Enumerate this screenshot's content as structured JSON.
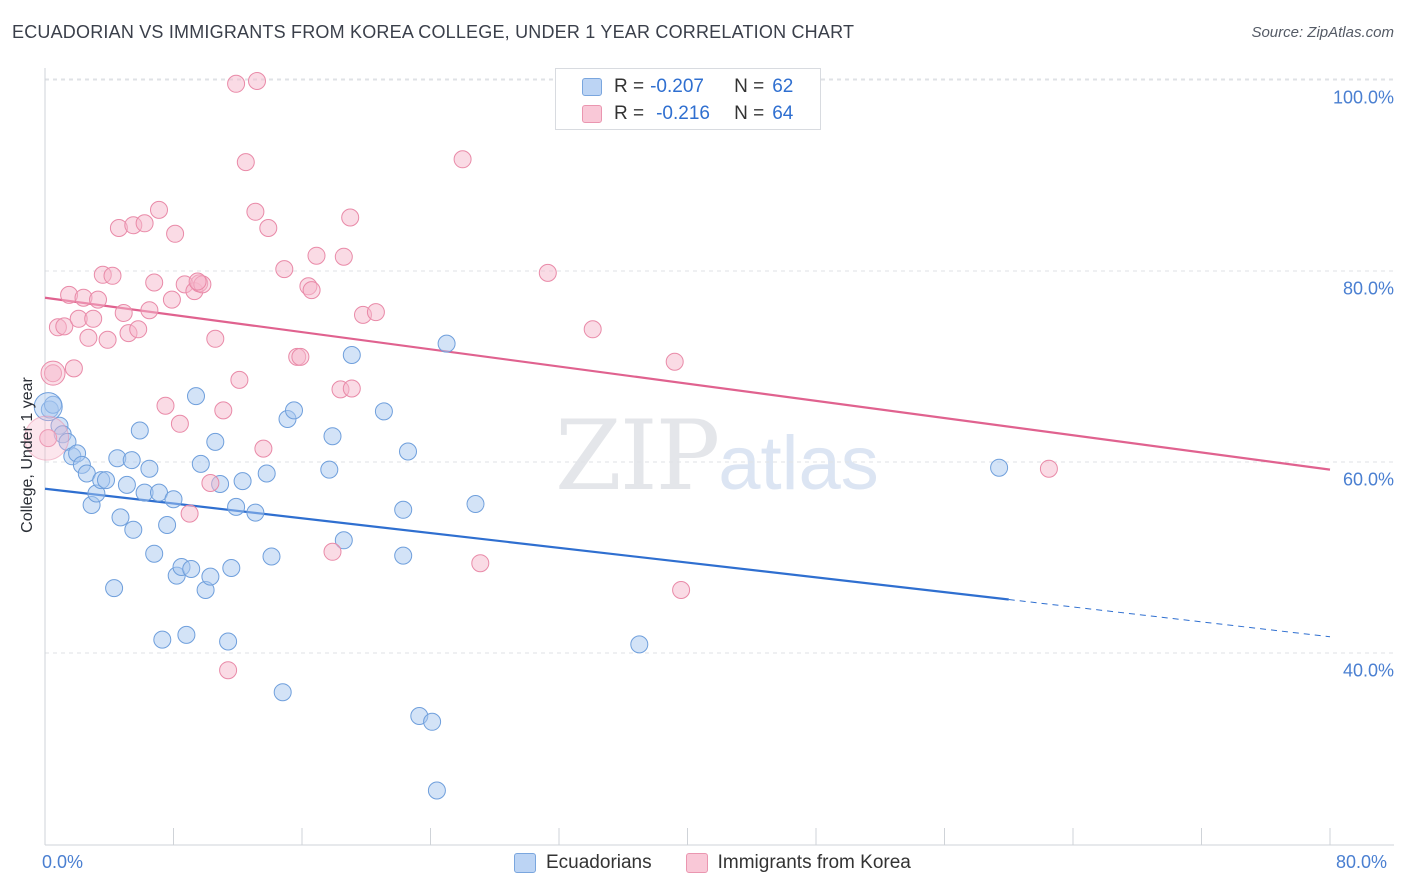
{
  "header": {
    "title": "ECUADORIAN VS IMMIGRANTS FROM KOREA COLLEGE, UNDER 1 YEAR CORRELATION CHART",
    "source": "Source: ZipAtlas.com"
  },
  "watermark": {
    "part1": "ZIP",
    "part2": "atlas"
  },
  "legend": {
    "rows": [
      {
        "r_label": "R =",
        "r_value": "-0.207",
        "n_label": "N =",
        "n_value": "62"
      },
      {
        "r_label": "R =",
        "r_value": "-0.216",
        "n_label": "N =",
        "n_value": "64"
      }
    ]
  },
  "bottom_legend": {
    "series1": "Ecuadorians",
    "series2": "Immigrants from Korea"
  },
  "colors": {
    "blue_fill": "#a8c8f0",
    "blue_stroke": "#6f9fdc",
    "blue_line": "#2f6fd0",
    "pink_fill": "#f6b8cb",
    "pink_stroke": "#e98aa8",
    "pink_line": "#e0628f",
    "grid": "#dfe2e6",
    "axis_text": "#4a7fd1"
  },
  "chart_data": {
    "type": "scatter",
    "title": "ECUADORIAN VS IMMIGRANTS FROM KOREA COLLEGE, UNDER 1 YEAR CORRELATION CHART",
    "xlabel": "",
    "ylabel": "College, Under 1 year",
    "xlim": [
      0,
      80
    ],
    "ylim": [
      20,
      103
    ],
    "x_tick_labels": [
      "0.0%",
      "80.0%"
    ],
    "y_ticks": [
      40,
      60,
      80,
      100
    ],
    "y_tick_labels": [
      "40.0%",
      "60.0%",
      "80.0%",
      "100.0%"
    ],
    "grid": true,
    "series": [
      {
        "name": "Ecuadorians",
        "color": "#a8c8f0",
        "points": [
          [
            0.3,
            65.5
          ],
          [
            0.5,
            66.0
          ],
          [
            0.9,
            63.8
          ],
          [
            1.1,
            62.9
          ],
          [
            1.4,
            62.1
          ],
          [
            1.7,
            60.6
          ],
          [
            2.0,
            60.9
          ],
          [
            2.3,
            59.7
          ],
          [
            2.6,
            58.8
          ],
          [
            2.9,
            55.5
          ],
          [
            3.2,
            56.7
          ],
          [
            3.5,
            58.1
          ],
          [
            3.8,
            58.1
          ],
          [
            4.3,
            46.8
          ],
          [
            4.5,
            60.4
          ],
          [
            4.7,
            54.2
          ],
          [
            5.1,
            57.6
          ],
          [
            5.4,
            60.2
          ],
          [
            5.5,
            52.9
          ],
          [
            5.9,
            63.3
          ],
          [
            6.2,
            56.8
          ],
          [
            6.5,
            59.3
          ],
          [
            6.8,
            50.4
          ],
          [
            7.1,
            56.8
          ],
          [
            7.3,
            41.4
          ],
          [
            7.6,
            53.4
          ],
          [
            8.0,
            56.1
          ],
          [
            8.2,
            48.1
          ],
          [
            8.5,
            49.0
          ],
          [
            8.8,
            41.9
          ],
          [
            9.1,
            48.8
          ],
          [
            9.4,
            66.9
          ],
          [
            9.7,
            59.8
          ],
          [
            10.0,
            46.6
          ],
          [
            10.3,
            48.0
          ],
          [
            10.6,
            62.1
          ],
          [
            10.9,
            57.7
          ],
          [
            11.4,
            41.2
          ],
          [
            11.6,
            48.9
          ],
          [
            11.9,
            55.3
          ],
          [
            12.3,
            58.0
          ],
          [
            13.1,
            54.7
          ],
          [
            13.8,
            58.8
          ],
          [
            14.1,
            50.1
          ],
          [
            14.8,
            35.9
          ],
          [
            15.1,
            64.5
          ],
          [
            15.5,
            65.4
          ],
          [
            17.7,
            59.2
          ],
          [
            17.9,
            62.7
          ],
          [
            18.6,
            51.8
          ],
          [
            19.1,
            71.2
          ],
          [
            21.1,
            65.3
          ],
          [
            22.3,
            55.0
          ],
          [
            22.3,
            50.2
          ],
          [
            22.6,
            61.1
          ],
          [
            23.3,
            33.4
          ],
          [
            24.1,
            32.8
          ],
          [
            24.4,
            25.6
          ],
          [
            25.0,
            72.4
          ],
          [
            26.8,
            55.6
          ],
          [
            37.0,
            40.9
          ],
          [
            59.4,
            59.4
          ]
        ]
      },
      {
        "name": "Immigrants from Korea",
        "color": "#f6b8cb",
        "points": [
          [
            0.2,
            62.5
          ],
          [
            0.5,
            69.3
          ],
          [
            0.8,
            74.1
          ],
          [
            1.2,
            74.2
          ],
          [
            1.5,
            77.5
          ],
          [
            1.8,
            69.8
          ],
          [
            2.1,
            75.0
          ],
          [
            2.4,
            77.2
          ],
          [
            2.7,
            73.0
          ],
          [
            3.0,
            75.0
          ],
          [
            3.3,
            77.0
          ],
          [
            3.6,
            79.6
          ],
          [
            3.9,
            72.8
          ],
          [
            4.2,
            79.5
          ],
          [
            4.6,
            84.5
          ],
          [
            4.9,
            75.6
          ],
          [
            5.2,
            73.5
          ],
          [
            5.5,
            84.8
          ],
          [
            5.8,
            73.9
          ],
          [
            6.2,
            85.0
          ],
          [
            6.5,
            75.9
          ],
          [
            6.8,
            78.8
          ],
          [
            7.1,
            86.4
          ],
          [
            7.5,
            65.9
          ],
          [
            7.9,
            77.0
          ],
          [
            8.1,
            83.9
          ],
          [
            8.4,
            64.0
          ],
          [
            8.7,
            78.6
          ],
          [
            9.0,
            54.6
          ],
          [
            9.3,
            77.9
          ],
          [
            9.6,
            78.7
          ],
          [
            9.8,
            78.6
          ],
          [
            10.3,
            57.8
          ],
          [
            10.6,
            72.9
          ],
          [
            11.1,
            65.4
          ],
          [
            11.4,
            38.2
          ],
          [
            11.9,
            99.6
          ],
          [
            12.1,
            68.6
          ],
          [
            12.5,
            91.4
          ],
          [
            13.1,
            86.2
          ],
          [
            13.6,
            61.4
          ],
          [
            13.9,
            84.5
          ],
          [
            14.9,
            80.2
          ],
          [
            15.7,
            71.0
          ],
          [
            15.9,
            71.0
          ],
          [
            16.4,
            78.4
          ],
          [
            16.6,
            78.0
          ],
          [
            16.9,
            81.6
          ],
          [
            17.9,
            50.6
          ],
          [
            18.4,
            67.6
          ],
          [
            18.6,
            81.5
          ],
          [
            19.0,
            85.6
          ],
          [
            19.1,
            67.7
          ],
          [
            19.8,
            75.4
          ],
          [
            20.6,
            75.7
          ],
          [
            26.0,
            91.7
          ],
          [
            27.1,
            49.4
          ],
          [
            31.3,
            79.8
          ],
          [
            34.1,
            73.9
          ],
          [
            39.2,
            70.5
          ],
          [
            39.6,
            46.6
          ],
          [
            62.5,
            59.3
          ],
          [
            13.2,
            99.9
          ],
          [
            9.5,
            78.9
          ]
        ]
      }
    ],
    "trendlines": [
      {
        "name": "Ecuadorians",
        "x_start": 0,
        "y_start": 57.2,
        "x_solid_end": 60,
        "y_solid_end": 45.6,
        "x_end": 80,
        "y_end": 41.7
      },
      {
        "name": "Immigrants from Korea",
        "x_start": 0,
        "y_start": 77.2,
        "x_end": 80,
        "y_end": 59.2
      }
    ]
  }
}
